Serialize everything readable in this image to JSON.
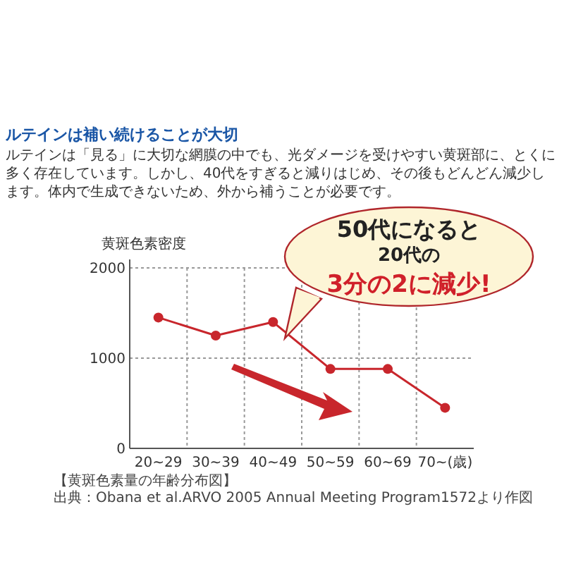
{
  "chart_data": {
    "type": "line",
    "title": "ルテインは補い続けることが大切",
    "subtitle": "ルテインは「見る」に大切な網膜の中でも、光ダメージを受けやすい黄斑部に、とくに多く存在しています。しかし、40代をすぎると減りはじめ、その後もどんどん減少します。体内で生成できないため、外から補うことが必要です。",
    "ylabel": "黄斑色素密度",
    "categories": [
      "20~29",
      "30~39",
      "40~49",
      "50~59",
      "60~69",
      "70~(歳)"
    ],
    "series": [
      {
        "color": "#c8262c",
        "values": [
          1450,
          1250,
          1400,
          880,
          880,
          450
        ]
      }
    ],
    "ylim": [
      0,
      2000
    ],
    "yticks": [
      0,
      1000,
      2000
    ],
    "grid": true,
    "marker": "circle",
    "line_style": "solid",
    "annotations": [
      "50代になると",
      "20代の",
      "3分の2に減少!",
      "【黄斑色素量の年齢分布図】",
      "出典：Obana et al.ARVO 2005 Annual Meeting Program1572より作図"
    ]
  }
}
